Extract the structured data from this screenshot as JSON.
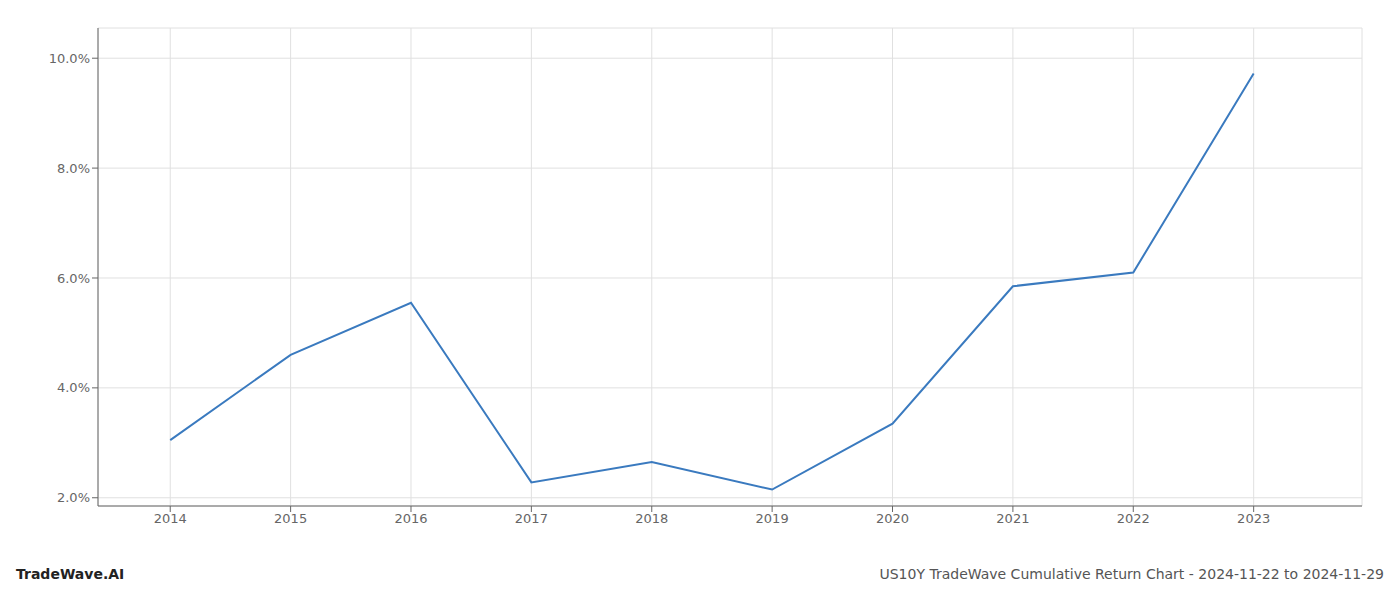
{
  "chart_data": {
    "type": "line",
    "x": [
      2014,
      2015,
      2016,
      2017,
      2018,
      2019,
      2020,
      2021,
      2022,
      2023
    ],
    "values": [
      3.05,
      4.6,
      5.55,
      2.28,
      2.65,
      2.15,
      3.35,
      5.85,
      6.1,
      9.72
    ],
    "color": "#3a7abf",
    "xlim": [
      2013.4,
      2023.9
    ],
    "xticks": [
      2014,
      2015,
      2016,
      2017,
      2018,
      2019,
      2020,
      2021,
      2022,
      2023
    ],
    "ylim": [
      1.85,
      10.55
    ],
    "yticks": [
      {
        "value": 2.0,
        "label": "2.0%"
      },
      {
        "value": 4.0,
        "label": "4.0%"
      },
      {
        "value": 6.0,
        "label": "6.0%"
      },
      {
        "value": 8.0,
        "label": "8.0%"
      },
      {
        "value": 10.0,
        "label": "10.0%"
      }
    ],
    "grid": true,
    "annotations": [
      "TradeWave.AI",
      "US10Y TradeWave Cumulative Return Chart - 2024-11-22 to 2024-11-29"
    ]
  }
}
